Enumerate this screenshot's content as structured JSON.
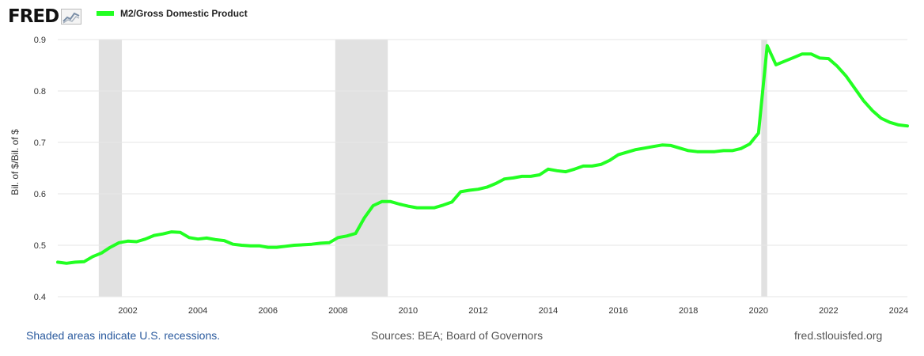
{
  "header": {
    "logo_text": "FRED",
    "logo_icon": "line-graph-icon",
    "legend_label": "M2/Gross Domestic Product"
  },
  "colors": {
    "series": "#22ff22",
    "recession": "#e1e1e1",
    "grid": "#e6e6e6",
    "link": "#2a5a9e"
  },
  "footer": {
    "note": "Shaded areas indicate U.S. recessions.",
    "sources": "Sources: BEA; Board of Governors",
    "site": "fred.stlouisfed.org"
  },
  "chart_data": {
    "type": "line",
    "title": "",
    "xlabel": "",
    "ylabel": "Bil. of $/Bil. of $",
    "xlim": [
      2000.0,
      2024.25
    ],
    "ylim": [
      0.4,
      0.9
    ],
    "yticks": [
      0.4,
      0.5,
      0.6,
      0.7,
      0.8,
      0.9
    ],
    "ytick_labels": [
      "0.4",
      "0.5",
      "0.6",
      "0.7",
      "0.8",
      "0.9"
    ],
    "xticks": [
      2002,
      2004,
      2006,
      2008,
      2010,
      2012,
      2014,
      2016,
      2018,
      2020,
      2022,
      2024
    ],
    "xtick_labels": [
      "2002",
      "2004",
      "2006",
      "2008",
      "2010",
      "2012",
      "2014",
      "2016",
      "2018",
      "2020",
      "2022",
      "2024"
    ],
    "grid": true,
    "legend_position": "top-left",
    "recessions": [
      [
        2001.17,
        2001.83
      ],
      [
        2007.92,
        2009.42
      ],
      [
        2020.08,
        2020.25
      ]
    ],
    "series": [
      {
        "name": "M2/Gross Domestic Product",
        "x": [
          2000.0,
          2000.25,
          2000.5,
          2000.75,
          2001.0,
          2001.25,
          2001.5,
          2001.75,
          2002.0,
          2002.25,
          2002.5,
          2002.75,
          2003.0,
          2003.25,
          2003.5,
          2003.75,
          2004.0,
          2004.25,
          2004.5,
          2004.75,
          2005.0,
          2005.25,
          2005.5,
          2005.75,
          2006.0,
          2006.25,
          2006.5,
          2006.75,
          2007.0,
          2007.25,
          2007.5,
          2007.75,
          2008.0,
          2008.25,
          2008.5,
          2008.75,
          2009.0,
          2009.25,
          2009.5,
          2009.75,
          2010.0,
          2010.25,
          2010.5,
          2010.75,
          2011.0,
          2011.25,
          2011.5,
          2011.75,
          2012.0,
          2012.25,
          2012.5,
          2012.75,
          2013.0,
          2013.25,
          2013.5,
          2013.75,
          2014.0,
          2014.25,
          2014.5,
          2014.75,
          2015.0,
          2015.25,
          2015.5,
          2015.75,
          2016.0,
          2016.25,
          2016.5,
          2016.75,
          2017.0,
          2017.25,
          2017.5,
          2017.75,
          2018.0,
          2018.25,
          2018.5,
          2018.75,
          2019.0,
          2019.25,
          2019.5,
          2019.75,
          2020.0,
          2020.25,
          2020.5,
          2020.75,
          2021.0,
          2021.25,
          2021.5,
          2021.75,
          2022.0,
          2022.25,
          2022.5,
          2022.75,
          2023.0,
          2023.25,
          2023.5,
          2023.75,
          2024.0,
          2024.25
        ],
        "values": [
          0.467,
          0.465,
          0.467,
          0.468,
          0.478,
          0.485,
          0.496,
          0.505,
          0.508,
          0.507,
          0.512,
          0.519,
          0.522,
          0.526,
          0.525,
          0.515,
          0.512,
          0.514,
          0.511,
          0.509,
          0.502,
          0.5,
          0.499,
          0.499,
          0.496,
          0.496,
          0.498,
          0.5,
          0.501,
          0.502,
          0.504,
          0.505,
          0.515,
          0.518,
          0.523,
          0.553,
          0.577,
          0.585,
          0.585,
          0.58,
          0.576,
          0.573,
          0.573,
          0.573,
          0.578,
          0.584,
          0.604,
          0.607,
          0.609,
          0.613,
          0.62,
          0.629,
          0.631,
          0.634,
          0.634,
          0.637,
          0.648,
          0.645,
          0.643,
          0.648,
          0.654,
          0.654,
          0.657,
          0.665,
          0.676,
          0.681,
          0.686,
          0.689,
          0.692,
          0.695,
          0.694,
          0.689,
          0.684,
          0.682,
          0.682,
          0.682,
          0.684,
          0.684,
          0.688,
          0.697,
          0.718,
          0.888,
          0.851,
          0.858,
          0.865,
          0.872,
          0.872,
          0.864,
          0.863,
          0.848,
          0.829,
          0.805,
          0.781,
          0.762,
          0.747,
          0.739,
          0.734,
          0.732
        ]
      }
    ]
  }
}
